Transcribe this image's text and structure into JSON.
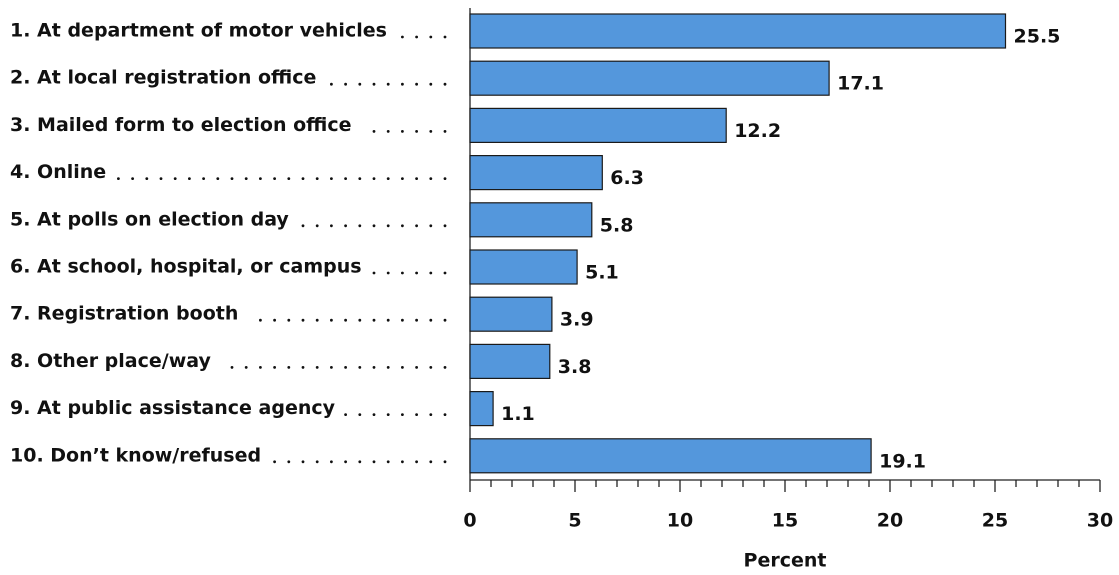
{
  "chart_data": {
    "type": "bar",
    "orientation": "horizontal",
    "categories": [
      "1.  At department of motor vehicles",
      "2. At local registration office",
      "3. Mailed form to election office",
      "4. Online",
      "5. At polls on election day",
      "6. At school, hospital, or campus",
      "7. Registration booth",
      "8. Other place/way",
      "9. At public assistance agency",
      "10. Don’t know/refused"
    ],
    "values": [
      25.5,
      17.1,
      12.2,
      6.3,
      5.8,
      5.1,
      3.9,
      3.8,
      1.1,
      19.1
    ],
    "color": "#5497dc",
    "x_label": "Percent",
    "xlim": [
      0,
      30
    ],
    "xticks": [
      0,
      5,
      10,
      15,
      20,
      25,
      30
    ],
    "minor_xticks": [
      1,
      2,
      3,
      4,
      6,
      7,
      8,
      9,
      11,
      12,
      13,
      14,
      16,
      17,
      18,
      19,
      21,
      22,
      23,
      24,
      26,
      27,
      28,
      29
    ]
  }
}
